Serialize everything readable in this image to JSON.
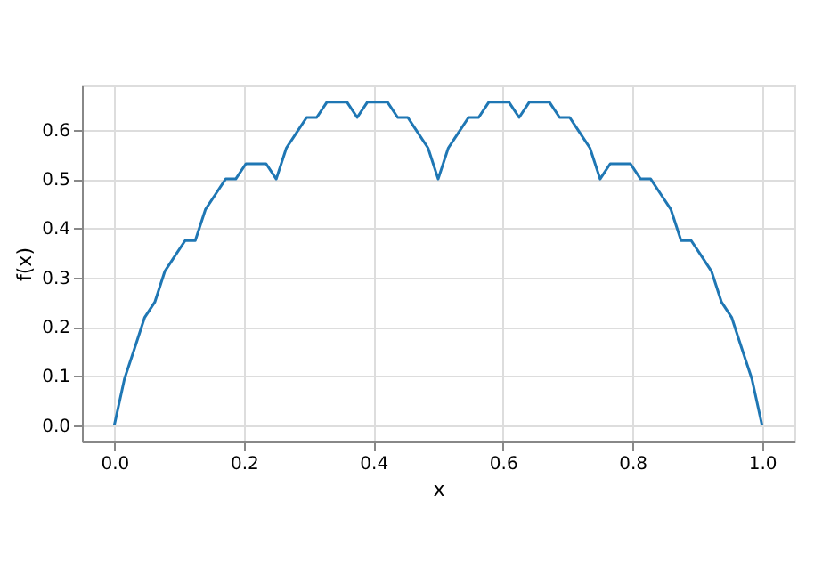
{
  "chart_data": {
    "type": "line",
    "xlabel": "x",
    "ylabel": "f(x)",
    "x": [
      0,
      0.015625,
      0.03125,
      0.046875,
      0.0625,
      0.078125,
      0.09375,
      0.109375,
      0.125,
      0.140625,
      0.15625,
      0.171875,
      0.1875,
      0.203125,
      0.21875,
      0.234375,
      0.25,
      0.265625,
      0.28125,
      0.296875,
      0.3125,
      0.328125,
      0.34375,
      0.359375,
      0.375,
      0.390625,
      0.40625,
      0.421875,
      0.4375,
      0.453125,
      0.46875,
      0.484375,
      0.5,
      0.515625,
      0.53125,
      0.546875,
      0.5625,
      0.578125,
      0.59375,
      0.609375,
      0.625,
      0.640625,
      0.65625,
      0.671875,
      0.6875,
      0.703125,
      0.71875,
      0.734375,
      0.75,
      0.765625,
      0.78125,
      0.796875,
      0.8125,
      0.828125,
      0.84375,
      0.859375,
      0.875,
      0.890625,
      0.90625,
      0.921875,
      0.9375,
      0.953125,
      0.96875,
      0.984375,
      1
    ],
    "series": [
      {
        "color": "#1f77b4",
        "values": [
          0,
          0.094,
          0.156,
          0.219,
          0.25,
          0.313,
          0.344,
          0.375,
          0.375,
          0.438,
          0.469,
          0.5,
          0.5,
          0.531,
          0.531,
          0.531,
          0.5,
          0.563,
          0.594,
          0.625,
          0.625,
          0.656,
          0.656,
          0.656,
          0.625,
          0.656,
          0.656,
          0.656,
          0.625,
          0.625,
          0.594,
          0.563,
          0.5,
          0.563,
          0.594,
          0.625,
          0.625,
          0.656,
          0.656,
          0.656,
          0.625,
          0.656,
          0.656,
          0.656,
          0.625,
          0.625,
          0.594,
          0.563,
          0.5,
          0.531,
          0.531,
          0.531,
          0.5,
          0.5,
          0.469,
          0.438,
          0.375,
          0.375,
          0.344,
          0.313,
          0.25,
          0.219,
          0.156,
          0.094,
          0
        ]
      }
    ],
    "xlim": [
      -0.05,
      1.05
    ],
    "ylim": [
      -0.033,
      0.69
    ],
    "xticks": [
      {
        "value": 0,
        "label": "0.0"
      },
      0.2,
      0.4,
      0.6,
      0.8,
      {
        "value": 1,
        "label": "1.0"
      }
    ],
    "yticks": [
      {
        "value": 0,
        "label": "0.0"
      },
      0.1,
      0.2,
      0.3,
      0.4,
      0.5,
      0.6
    ],
    "grid": true,
    "marker": "none",
    "line_style": "solid"
  }
}
